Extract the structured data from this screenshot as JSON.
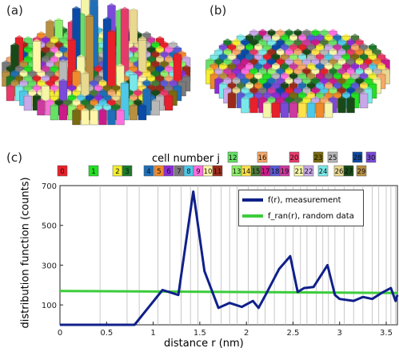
{
  "panels": {
    "a": "(a)",
    "b": "(b)",
    "c": "(c)"
  },
  "cell_header": "cell number j",
  "cell_colors": [
    "#e8202a",
    "#22e022",
    "#f2ee30",
    "#1b7a2a",
    "#1f6fb8",
    "#f08a2a",
    "#8e2bd8",
    "#7a7a7a",
    "#4ec8e8",
    "#ff6ee0",
    "#fff6a8",
    "#9c2a1a",
    "#66e066",
    "#8ef06a",
    "#ffe14a",
    "#4a7a3a",
    "#f4a86a",
    "#cc1a8a",
    "#5a5ad8",
    "#cc3aa0",
    "#e83a6a",
    "#f5f5a8",
    "#c8a8e8",
    "#7a6a10",
    "#7ae8e8",
    "#b8b8b8",
    "#e8d890",
    "#184a18",
    "#0a4aa8",
    "#b89040",
    "#7a4ad8"
  ],
  "cell_labels": [
    "0",
    "1",
    "2",
    "3",
    "4",
    "5",
    "6",
    "7",
    "8",
    "9",
    "10",
    "11",
    "12",
    "13",
    "14",
    "15",
    "16",
    "17",
    "18",
    "19",
    "20",
    "21",
    "22",
    "23",
    "24",
    "25",
    "26",
    "27",
    "28",
    "29",
    "30"
  ],
  "chart_data": {
    "type": "line",
    "xlabel": "distance r (nm)",
    "ylabel": "distribution function (counts)",
    "xlim": [
      0,
      3.62
    ],
    "ylim": [
      0,
      700
    ],
    "x_ticks": [
      "0",
      "0.5",
      "1",
      "1.5",
      "2",
      "2.5",
      "3",
      "3.5"
    ],
    "y_ticks": [
      "100",
      "300",
      "500",
      "700"
    ],
    "series": [
      {
        "name": "f(r), measurement",
        "color": "#10208a",
        "x": [
          0,
          0.8,
          1.1,
          1.27,
          1.43,
          1.55,
          1.7,
          1.82,
          1.95,
          2.07,
          2.13,
          2.2,
          2.35,
          2.47,
          2.55,
          2.62,
          2.72,
          2.87,
          2.95,
          3.0,
          3.15,
          3.25,
          3.35,
          3.45,
          3.55,
          3.6,
          3.62
        ],
        "y": [
          0,
          0,
          175,
          150,
          670,
          270,
          85,
          110,
          90,
          120,
          85,
          145,
          280,
          345,
          165,
          185,
          190,
          300,
          150,
          130,
          120,
          140,
          130,
          160,
          185,
          120,
          150
        ]
      },
      {
        "name": "f_ran(r), random data",
        "color": "#3ccc3c",
        "x": [
          0,
          3.62
        ],
        "y": [
          170,
          160
        ]
      }
    ],
    "vlines": [
      0.43,
      0.72,
      0.85,
      1.05,
      1.18,
      1.3,
      1.4,
      1.48,
      1.62,
      1.73,
      1.82,
      1.9,
      2.02,
      2.12,
      2.2,
      2.3,
      2.42,
      2.5,
      2.58,
      2.65,
      2.75,
      2.82,
      2.88,
      2.95,
      3.05,
      3.15,
      3.25,
      3.35,
      3.42,
      3.5,
      3.55,
      3.6
    ],
    "legend": "top-right",
    "grid": false
  }
}
